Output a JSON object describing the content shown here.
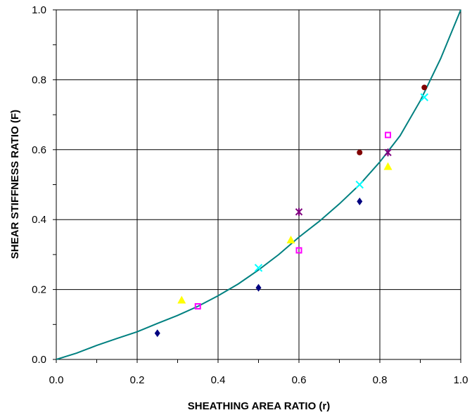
{
  "chart_data": {
    "type": "scatter",
    "title": "",
    "xlabel": "SHEATHING AREA RATIO (r)",
    "ylabel": "SHEAR STIFFNESS RATIO (F)",
    "xlim": [
      0.0,
      1.0
    ],
    "ylim": [
      0.0,
      1.0
    ],
    "x_ticks": [
      "0.0",
      "0.2",
      "0.4",
      "0.6",
      "0.8",
      "1.0"
    ],
    "y_ticks": [
      "0.0",
      "0.2",
      "0.4",
      "0.6",
      "0.8",
      "1.0"
    ],
    "grid": true,
    "legend": "none",
    "series": [
      {
        "marker": "diamond",
        "color": "#000080",
        "points": [
          [
            0.25,
            0.075
          ],
          [
            0.5,
            0.205
          ],
          [
            0.75,
            0.452
          ]
        ]
      },
      {
        "marker": "square",
        "color": "#ff00ff",
        "points": [
          [
            0.35,
            0.152
          ],
          [
            0.6,
            0.312
          ],
          [
            0.82,
            0.642
          ]
        ]
      },
      {
        "marker": "triangle",
        "color": "#ffff00",
        "points": [
          [
            0.31,
            0.17
          ],
          [
            0.58,
            0.342
          ],
          [
            0.82,
            0.552
          ]
        ]
      },
      {
        "marker": "x",
        "color": "#00ffff",
        "points": [
          [
            0.5,
            0.262
          ],
          [
            0.75,
            0.5
          ],
          [
            0.91,
            0.75
          ]
        ]
      },
      {
        "marker": "star",
        "color": "#800080",
        "points": [
          [
            0.6,
            0.422
          ],
          [
            0.82,
            0.592
          ]
        ]
      },
      {
        "marker": "circle",
        "color": "#800000",
        "points": [
          [
            0.75,
            0.592
          ],
          [
            0.91,
            0.778
          ]
        ]
      },
      {
        "type": "line",
        "color": "#008080",
        "points": [
          [
            0.0,
            0.0
          ],
          [
            0.05,
            0.018
          ],
          [
            0.1,
            0.04
          ],
          [
            0.15,
            0.06
          ],
          [
            0.2,
            0.079
          ],
          [
            0.25,
            0.103
          ],
          [
            0.3,
            0.126
          ],
          [
            0.35,
            0.152
          ],
          [
            0.4,
            0.182
          ],
          [
            0.45,
            0.216
          ],
          [
            0.5,
            0.256
          ],
          [
            0.55,
            0.3
          ],
          [
            0.6,
            0.35
          ],
          [
            0.65,
            0.395
          ],
          [
            0.7,
            0.445
          ],
          [
            0.75,
            0.5
          ],
          [
            0.8,
            0.565
          ],
          [
            0.85,
            0.64
          ],
          [
            0.9,
            0.74
          ],
          [
            0.95,
            0.86
          ],
          [
            1.0,
            1.0
          ]
        ]
      }
    ]
  }
}
